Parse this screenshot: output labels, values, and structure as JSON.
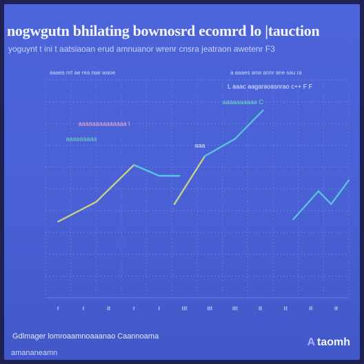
{
  "header": {
    "title": "nogwgutn bhilating bownosrd ecomrd lo |tauction",
    "subtitle": "yoguynt t ini t aatsiaoan  erud amnuanor wrenr cnsra jeatraon   awetenr F3",
    "legend_left": "aaaes nrt ae rea nae waoe",
    "legend_right": "a aaaes anw annr ane sau ra"
  },
  "footer": {
    "source": "Gdlmager  lomroaamnoaaanao Caannoama",
    "note": "amananeamn",
    "brand_mark": "A",
    "brand": "taomh"
  },
  "colors": {
    "background": "#4a61d6",
    "grid": "#7f93ee",
    "segment_yellow": "#c8cf8a",
    "segment_cyan": "#5cc6e6",
    "segment_teal": "#59c2d8",
    "label_green": "#6fdcc0",
    "label_pink": "#f2b3c8"
  },
  "chart_data": {
    "type": "line",
    "title": "nogwgutn bhilating bownosrd ecomrd lo |tauction",
    "xlabel": "",
    "ylabel": "",
    "grid": true,
    "legend": "top",
    "x_ticks": [
      "ℓ",
      "ℓ",
      "ℓℓ",
      "ℓ",
      "ℓ",
      "ℓℓℓ",
      "ℓℓℓ",
      "ℓℓℓ",
      "ℓℓ",
      "ℓℓ",
      "ℓℓ",
      "ℓℓ"
    ],
    "xlim": [
      0,
      12
    ],
    "ylim": [
      0,
      10
    ],
    "series": [
      {
        "color": "#c8cf8a",
        "x": [
          0.5,
          2.0,
          3.5
        ],
        "y": [
          3.5,
          4.4,
          6.1
        ]
      },
      {
        "color": "#5cc6e6",
        "x": [
          3.5,
          4.5,
          5.3
        ],
        "y": [
          6.1,
          5.6,
          5.6
        ]
      },
      {
        "color": "#c8cf8a",
        "x": [
          5.1,
          6.3
        ],
        "y": [
          4.3,
          6.5
        ]
      },
      {
        "color": "#59c2d8",
        "x": [
          6.3,
          7.5,
          8.6
        ],
        "y": [
          6.5,
          7.3,
          8.6
        ]
      },
      {
        "color": "#59c2d8",
        "x": [
          9.8,
          10.8,
          11.3,
          12.0
        ],
        "y": [
          3.6,
          4.9,
          4.3,
          5.4
        ]
      }
    ],
    "annotations": [
      {
        "text": "L aaac aagaraoasnrao c++  F F",
        "x": 7.2,
        "y": 9.6,
        "color": "#e4e9ff"
      },
      {
        "text": "aaaaaaaaaa C",
        "x": 7.0,
        "y": 8.9,
        "color": "#6fdcc0"
      },
      {
        "text": "aaaaaaaaaaaaaa l",
        "x": 1.3,
        "y": 7.9,
        "color": "#f2b3c8"
      },
      {
        "text": "aaaaaaaaa",
        "x": 0.8,
        "y": 7.2,
        "color": "#6fdcc0"
      },
      {
        "text": "aaa",
        "x": 5.9,
        "y": 6.9,
        "color": "#e4e9ff"
      }
    ]
  }
}
